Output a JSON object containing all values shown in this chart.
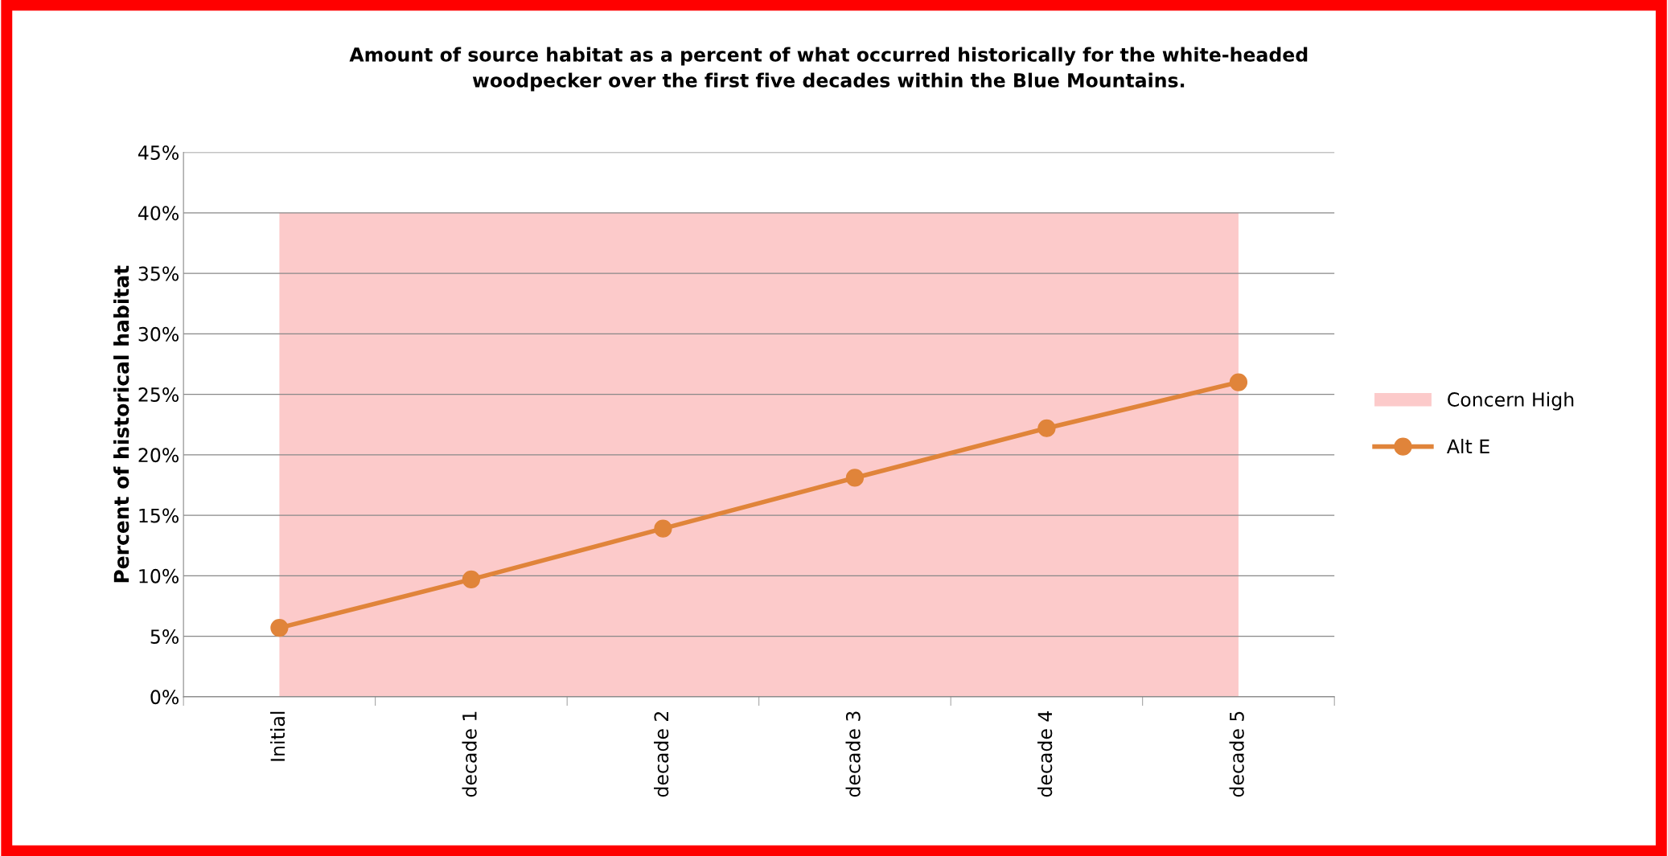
{
  "chart_data": {
    "type": "line",
    "title": "Amount of source habitat as a percent of what occurred historically for the white-headed\nwoodpecker over the first five decades within the Blue Mountains.",
    "ylabel": "Percent of historical habitat",
    "categories": [
      "Initial",
      "decade 1",
      "decade 2",
      "decade 3",
      "decade 4",
      "decade 5"
    ],
    "series": [
      {
        "name": "Concern High",
        "type": "area",
        "color": "#fccaca",
        "values": [
          40,
          40,
          40,
          40,
          40,
          40
        ]
      },
      {
        "name": "Alt E",
        "color": "#e0843a",
        "marker": "circle",
        "values": [
          5.7,
          9.7,
          13.9,
          18.1,
          22.2,
          26.0
        ]
      }
    ],
    "ylim": [
      0,
      45
    ],
    "yticks": [
      {
        "value": 0,
        "label": "0%"
      },
      {
        "value": 5,
        "label": "5%"
      },
      {
        "value": 10,
        "label": "10%"
      },
      {
        "value": 15,
        "label": "15%"
      },
      {
        "value": 20,
        "label": "20%"
      },
      {
        "value": 25,
        "label": "25%"
      },
      {
        "value": 30,
        "label": "30%"
      },
      {
        "value": 35,
        "label": "35%"
      },
      {
        "value": 40,
        "label": "40%"
      },
      {
        "value": 45,
        "label": "45%"
      }
    ],
    "grid": "y",
    "legend": "right",
    "line_style": "solid"
  }
}
